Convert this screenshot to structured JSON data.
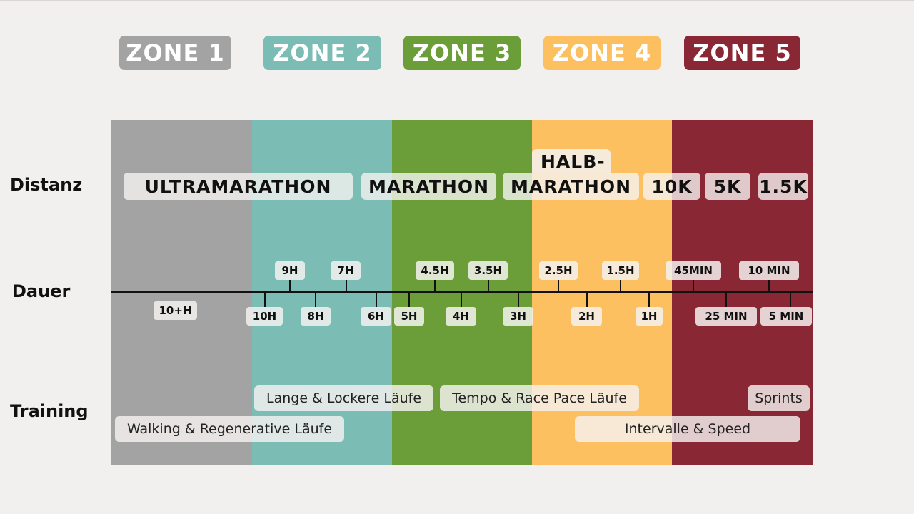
{
  "zones": [
    {
      "label": "ZONE 1",
      "color": "#a3a3a3"
    },
    {
      "label": "ZONE 2",
      "color": "#7bbdb4"
    },
    {
      "label": "ZONE 3",
      "color": "#6b9e38"
    },
    {
      "label": "ZONE 4",
      "color": "#fcc060"
    },
    {
      "label": "ZONE 5",
      "color": "#8a2735"
    }
  ],
  "rows": {
    "distance": "Distanz",
    "duration": "Dauer",
    "training": "Training"
  },
  "distances": {
    "ultramarathon": "ULTRAMARATHON",
    "marathon": "MARATHON",
    "half_marathon_line1": "HALB-",
    "half_marathon_line2": "MARATHON",
    "d10k": "10K",
    "d5k": "5K",
    "d1_5k": "1.5K"
  },
  "durations_above": [
    "9H",
    "7H",
    "4.5H",
    "3.5H",
    "2.5H",
    "1.5H",
    "45MIN",
    "10 MIN"
  ],
  "durations_below": [
    "10+H",
    "10H",
    "8H",
    "6H",
    "5H",
    "4H",
    "3H",
    "2H",
    "1H",
    "25 MIN",
    "5 MIN"
  ],
  "training": {
    "long_easy": "Lange & Lockere Läufe",
    "tempo": "Tempo & Race Pace Läufe",
    "sprints": "Sprints",
    "walking": "Walking & Regenerative Läufe",
    "intervals": "Intervalle & Speed"
  }
}
